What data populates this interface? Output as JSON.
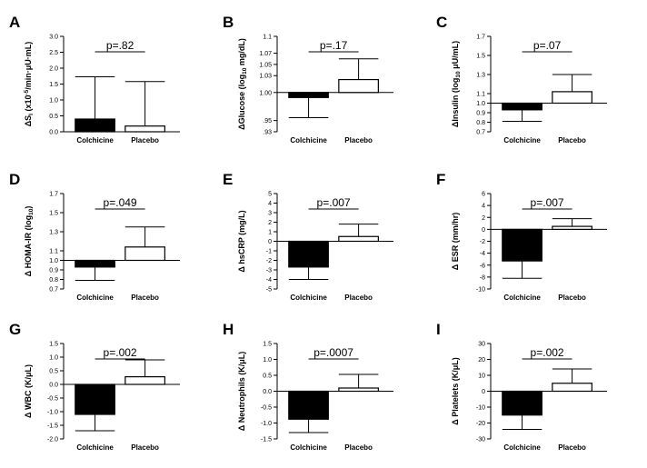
{
  "chart_data": [
    {
      "type": "bar",
      "panel_label": "A",
      "ylabel": "ΔSI (x10⁻⁵/min·μU·mL)",
      "ylabel_parts": [
        {
          "t": "Δ"
        },
        {
          "t": "S"
        },
        {
          "t": "I",
          "sub": true
        },
        {
          "t": " (x10"
        },
        {
          "t": "-5",
          "sup": true
        },
        {
          "t": "/min·μU·mL)"
        }
      ],
      "ylim": [
        0,
        3.0
      ],
      "yticks": [
        "0.0",
        "0.5",
        "1.0",
        "1.5",
        "2.0",
        "2.5",
        "3.0"
      ],
      "ytick_values": [
        0,
        0.5,
        1.0,
        1.5,
        2.0,
        2.5,
        3.0
      ],
      "categories": [
        "Colchicine",
        "Placebo"
      ],
      "values": [
        0.4,
        0.18
      ],
      "error_upper": [
        1.73,
        1.58
      ],
      "annotation": "p=.82"
    },
    {
      "type": "bar",
      "panel_label": "B",
      "ylabel": "ΔGlucose (log10 mg/dL)",
      "ylabel_parts": [
        {
          "t": "ΔGlucose (log"
        },
        {
          "t": "10",
          "sub": true
        },
        {
          "t": " mg/dL)"
        }
      ],
      "ylim": [
        0.93,
        1.1
      ],
      "yticks": [
        ".93",
        ".95",
        "1.00",
        "1.03",
        "1.05",
        "1.07",
        "1.1"
      ],
      "ytick_values": [
        0.93,
        0.95,
        1.0,
        1.03,
        1.05,
        1.07,
        1.1
      ],
      "categories": [
        "Colchicine",
        "Placebo"
      ],
      "values": [
        0.991,
        1.023
      ],
      "error_lower": [
        0.955,
        null
      ],
      "error_upper": [
        null,
        1.06
      ],
      "annotation": "p=.17"
    },
    {
      "type": "bar",
      "panel_label": "C",
      "ylabel": "ΔInsulin (log10 μU/mL)",
      "ylabel_parts": [
        {
          "t": "ΔInsulin (log"
        },
        {
          "t": "10",
          "sub": true
        },
        {
          "t": " μU/mL)"
        }
      ],
      "ylim": [
        0.7,
        1.7
      ],
      "yticks": [
        "0.7",
        "0.8",
        "0.9",
        "1.0",
        "1.1",
        "1.3",
        "1.5",
        "1.7"
      ],
      "ytick_values": [
        0.7,
        0.8,
        0.9,
        1.0,
        1.1,
        1.3,
        1.5,
        1.7
      ],
      "categories": [
        "Colchicine",
        "Placebo"
      ],
      "values": [
        0.93,
        1.12
      ],
      "error_lower": [
        0.81,
        null
      ],
      "error_upper": [
        null,
        1.3
      ],
      "annotation": "p=.07"
    },
    {
      "type": "bar",
      "panel_label": "D",
      "ylabel": "Δ HOMA-IR (log10)",
      "ylabel_parts": [
        {
          "t": "Δ HOMA-IR (log"
        },
        {
          "t": "10",
          "sub": true
        },
        {
          "t": ")"
        }
      ],
      "ylim": [
        0.7,
        1.7
      ],
      "yticks": [
        "0.7",
        "0.8",
        "0.9",
        "1.0",
        "1.1",
        "1.3",
        "1.5",
        "1.7"
      ],
      "ytick_values": [
        0.7,
        0.8,
        0.9,
        1.0,
        1.1,
        1.3,
        1.5,
        1.7
      ],
      "categories": [
        "Colchicine",
        "Placebo"
      ],
      "values": [
        0.93,
        1.14
      ],
      "error_lower": [
        0.79,
        null
      ],
      "error_upper": [
        null,
        1.35
      ],
      "annotation": "p=.049"
    },
    {
      "type": "bar",
      "panel_label": "E",
      "ylabel": "Δ hsCRP (mg/L)",
      "ylabel_parts": [
        {
          "t": "Δ hsCRP (mg/L)"
        }
      ],
      "ylim": [
        -5,
        5
      ],
      "yticks": [
        "-5",
        "-4",
        "-3",
        "-2",
        "-1",
        "0",
        "1",
        "2",
        "3",
        "4",
        "5"
      ],
      "ytick_values": [
        -5,
        -4,
        -3,
        -2,
        -1,
        0,
        1,
        2,
        3,
        4,
        5
      ],
      "categories": [
        "Colchicine",
        "Placebo"
      ],
      "values": [
        -2.7,
        0.5
      ],
      "error_lower": [
        -4.0,
        null
      ],
      "error_upper": [
        null,
        1.8
      ],
      "annotation": "p=.007"
    },
    {
      "type": "bar",
      "panel_label": "F",
      "ylabel": "Δ ESR (mm/hr)",
      "ylabel_parts": [
        {
          "t": "Δ ESR (mm/hr)"
        }
      ],
      "ylim": [
        -10,
        6
      ],
      "yticks": [
        "-10",
        "-8",
        "-6",
        "-4",
        "-2",
        "0",
        "2",
        "4",
        "6"
      ],
      "ytick_values": [
        -10,
        -8,
        -6,
        -4,
        -2,
        0,
        2,
        4,
        6
      ],
      "categories": [
        "Colchicine",
        "Placebo"
      ],
      "values": [
        -5.3,
        0.5
      ],
      "error_lower": [
        -8.2,
        null
      ],
      "error_upper": [
        null,
        1.8
      ],
      "annotation": "p=.007"
    },
    {
      "type": "bar",
      "panel_label": "G",
      "ylabel": "Δ WBC (K/μL)",
      "ylabel_parts": [
        {
          "t": "Δ WBC (K/μL)"
        }
      ],
      "ylim": [
        -2.0,
        1.5
      ],
      "yticks": [
        "-2.0",
        "-1.5",
        "-1.0",
        "-0.5",
        "0.0",
        "0.5",
        "1.0",
        "1.5"
      ],
      "ytick_values": [
        -2.0,
        -1.5,
        -1.0,
        -0.5,
        0,
        0.5,
        1.0,
        1.5
      ],
      "categories": [
        "Colchicine",
        "Placebo"
      ],
      "values": [
        -1.1,
        0.28
      ],
      "error_lower": [
        -1.7,
        null
      ],
      "error_upper": [
        null,
        0.9
      ],
      "annotation": "p=.002"
    },
    {
      "type": "bar",
      "panel_label": "H",
      "ylabel": "Δ Neutrophils (K/μL)",
      "ylabel_parts": [
        {
          "t": "Δ Neutrophils (K/μL)"
        }
      ],
      "ylim": [
        -1.5,
        1.5
      ],
      "yticks": [
        "-1.5",
        "-1.0",
        "-0.5",
        "0.0",
        "0.5",
        "1.0",
        "1.5"
      ],
      "ytick_values": [
        -1.5,
        -1.0,
        -0.5,
        0,
        0.5,
        1.0,
        1.5
      ],
      "categories": [
        "Colchicine",
        "Placebo"
      ],
      "values": [
        -0.88,
        0.1
      ],
      "error_lower": [
        -1.3,
        null
      ],
      "error_upper": [
        null,
        0.53
      ],
      "annotation": "p=.0007"
    },
    {
      "type": "bar",
      "panel_label": "I",
      "ylabel": "Δ Platelets (K/μL)",
      "ylabel_parts": [
        {
          "t": "Δ Platelets (K/μL)"
        }
      ],
      "ylim": [
        -30,
        30
      ],
      "yticks": [
        "-30",
        "-20",
        "-10",
        "0",
        "10",
        "20",
        "30"
      ],
      "ytick_values": [
        -30,
        -20,
        -10,
        0,
        10,
        20,
        30
      ],
      "categories": [
        "Colchicine",
        "Placebo"
      ],
      "values": [
        -15,
        5
      ],
      "error_lower": [
        -24,
        null
      ],
      "error_upper": [
        null,
        14
      ],
      "annotation": "p=.002"
    }
  ],
  "colors": {
    "colchicine_fill": "#000000",
    "placebo_fill": "#ffffff",
    "stroke": "#000000"
  }
}
